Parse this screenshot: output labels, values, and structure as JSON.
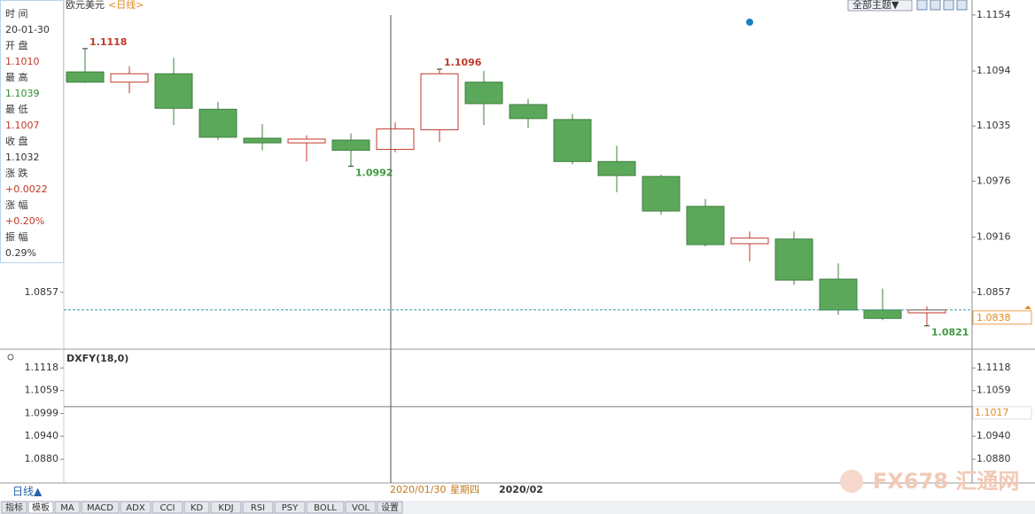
{
  "header": {
    "symbol": "欧元美元",
    "period": "<日线>",
    "theme": "全部主题▼"
  },
  "info_panel": [
    {
      "label": "时 间",
      "value": "20-01-30"
    },
    {
      "label": "开 盘",
      "value": "1.1010"
    },
    {
      "label": "最 高",
      "value": "1.1039"
    },
    {
      "label": "最 低",
      "value": "1.1007"
    },
    {
      "label": "收 盘",
      "value": "1.1032"
    },
    {
      "label": "涨 跌",
      "value": "+0.0022"
    },
    {
      "label": "涨 幅",
      "value": "+0.20%"
    },
    {
      "label": "振 幅",
      "value": "0.29%"
    }
  ],
  "crosshair": {
    "date": "2020/01/30",
    "weekday": "星期四"
  },
  "period_button": "日线▲",
  "tabs": [
    "指标",
    "模板",
    "MA",
    "MACD",
    "ADX",
    "CCI",
    "KD",
    "KDJ",
    "RSI",
    "PSY",
    "BOLL",
    "VOL",
    "设置"
  ],
  "watermark": "FX678 汇通网",
  "chart_data": [
    {
      "type": "candlestick",
      "categories": [
        null,
        null,
        null,
        null,
        null,
        null,
        null,
        null,
        null,
        "2020/02",
        null,
        null,
        null,
        null,
        null,
        null,
        null,
        null,
        null,
        null
      ],
      "open": [
        1.1093,
        1.1082,
        1.1091,
        1.1053,
        1.1022,
        1.1017,
        1.102,
        1.101,
        1.1031,
        1.1082,
        1.1058,
        1.1042,
        1.0997,
        1.0981,
        1.0949,
        1.0909,
        1.0914,
        1.0871,
        1.0838,
        1.0835
      ],
      "high": [
        1.1118,
        1.1099,
        1.1108,
        1.1061,
        1.1037,
        1.1025,
        1.1027,
        1.1039,
        1.1096,
        1.1094,
        1.1064,
        1.1048,
        1.1014,
        1.0983,
        1.0957,
        1.0922,
        1.0922,
        1.0888,
        1.0861,
        1.0842
      ],
      "low": [
        1.1081,
        1.107,
        1.1036,
        1.102,
        1.1009,
        1.0997,
        1.0992,
        1.1007,
        1.1018,
        1.1036,
        1.1033,
        1.0994,
        1.0964,
        1.094,
        1.0906,
        1.089,
        1.0865,
        1.0833,
        1.0827,
        1.0821
      ],
      "close": [
        1.1082,
        1.1091,
        1.1054,
        1.1023,
        1.1017,
        1.1021,
        1.1009,
        1.1032,
        1.1091,
        1.1059,
        1.1043,
        1.0997,
        1.0982,
        1.0944,
        1.0908,
        1.0915,
        1.087,
        1.0838,
        1.0829,
        1.0838
      ],
      "up_color": "#c0392b",
      "down_color": "#5ba85b",
      "marked_highs": [
        0,
        8
      ],
      "marked_lows": [
        6,
        19
      ],
      "crosshair_index": 7,
      "ylim": [
        1.0797,
        1.117
      ],
      "yticks": [
        1.1154,
        1.1094,
        1.1035,
        1.0976,
        1.0916,
        1.0857
      ]
    },
    {
      "type": "hline",
      "title": "DXFY(18,0)",
      "value": 1.1017,
      "ylim": [
        1.0818,
        1.116
      ],
      "yticks": [
        1.1118,
        1.1059,
        1.0999,
        {
          "value": 1.094,
          "label": "1.0940"
        },
        {
          "value": 1.088,
          "label": "1.0880"
        }
      ]
    }
  ]
}
